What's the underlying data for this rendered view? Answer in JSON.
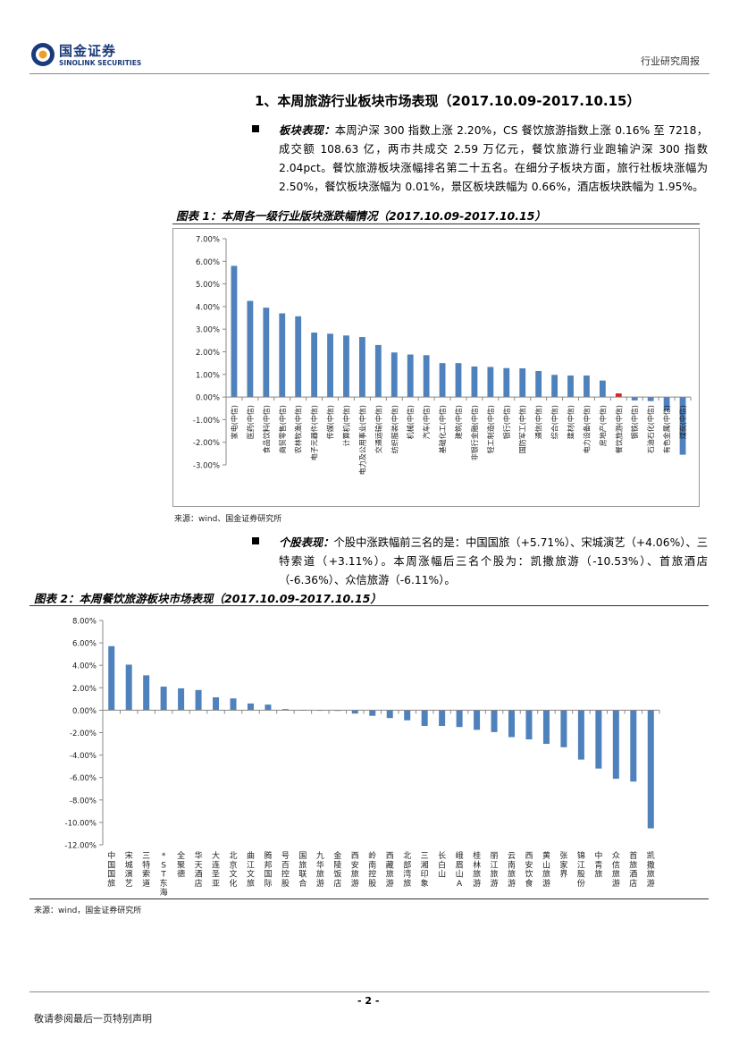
{
  "header": {
    "logo_cn": "国金证券",
    "logo_en": "SINOLINK SECURITIES",
    "report_type": "行业研究周报"
  },
  "section": {
    "title": "1、本周旅游行业板块市场表现（2017.10.09-2017.10.15）"
  },
  "para1": {
    "lead": "板块表现：",
    "text": "本周沪深 300 指数上涨 2.20%，CS 餐饮旅游指数上涨 0.16% 至 7218，成交额 108.63 亿，两市共成交 2.59 万亿元，餐饮旅游行业跑输沪深 300 指数 2.04pct。餐饮旅游板块涨幅排名第二十五名。在细分子板块方面，旅行社板块涨幅为 2.50%，餐饮板块涨幅为 0.01%，景区板块跌幅为 0.66%，酒店板块跌幅为 1.95%。"
  },
  "para2": {
    "lead": "个股表现：",
    "text": "个股中涨跌幅前三名的是：中国国旅（+5.71%）、宋城演艺（+4.06%）、三特索道（+3.11%）。本周涨幅后三名个股为：凯撒旅游（-10.53%）、首旅酒店（-6.36%）、众信旅游（-6.11%）。"
  },
  "fig1": {
    "title": "图表 1：本周各一级行业版块涨跌幅情况（2017.10.09-2017.10.15）",
    "source": "来源：wind、国金证券研究所"
  },
  "fig2": {
    "title": "图表 2：本周餐饮旅游板块市场表现（2017.10.09-2017.10.15）",
    "source": "来源：wind，国金证券研究所"
  },
  "footer": {
    "page": "- 2 -",
    "disclaimer": "敬请参阅最后一页特别声明"
  },
  "colors": {
    "bar": "#4f81bd",
    "highlight": "#e02020",
    "brand": "#1a3a7a"
  },
  "chart_data": [
    {
      "type": "bar",
      "title": "图表 1：本周各一级行业版块涨跌幅情况（2017.10.09-2017.10.15）",
      "ylim": [
        -3,
        7
      ],
      "y_ticks": [
        "7.00%",
        "6.00%",
        "5.00%",
        "4.00%",
        "3.00%",
        "2.00%",
        "1.00%",
        "0.00%",
        "-1.00%",
        "-2.00%",
        "-3.00%"
      ],
      "y_tick_values": [
        7,
        6,
        5,
        4,
        3,
        2,
        1,
        0,
        -1,
        -2,
        -3
      ],
      "highlight_category": "餐饮旅游(中信)",
      "categories": [
        "家电(中信)",
        "医药(中信)",
        "食品饮料(中信)",
        "商贸零售(中信)",
        "农林牧渔(中信)",
        "电子元器件(中信)",
        "传媒(中信)",
        "计算机(中信)",
        "电力及公用事业(中信)",
        "交通运输(中信)",
        "纺织服装(中信)",
        "机械(中信)",
        "汽车(中信)",
        "基础化工(中信)",
        "建筑(中信)",
        "非银行金融(中信)",
        "轻工制造(中信)",
        "银行(中信)",
        "国防军工(中信)",
        "通信(中信)",
        "综合(中信)",
        "建材(中信)",
        "电力设备(中信)",
        "房地产(中信)",
        "餐饮旅游(中信)",
        "钢铁(中信)",
        "石油石化(中信)",
        "有色金属(中信)",
        "煤炭(中信)"
      ],
      "values": [
        5.8,
        4.25,
        3.95,
        3.7,
        3.57,
        2.85,
        2.8,
        2.72,
        2.65,
        2.3,
        1.97,
        1.88,
        1.85,
        1.5,
        1.5,
        1.35,
        1.33,
        1.28,
        1.27,
        1.15,
        0.98,
        0.95,
        0.95,
        0.73,
        0.16,
        -0.15,
        -0.18,
        -0.6,
        -2.55
      ]
    },
    {
      "type": "bar",
      "title": "图表 2：本周餐饮旅游板块市场表现（2017.10.09-2017.10.15）",
      "ylim": [
        -12,
        8
      ],
      "y_ticks": [
        "8.00%",
        "6.00%",
        "4.00%",
        "2.00%",
        "0.00%",
        "-2.00%",
        "-4.00%",
        "-6.00%",
        "-8.00%",
        "-10.00%",
        "-12.00%"
      ],
      "y_tick_values": [
        8,
        6,
        4,
        2,
        0,
        -2,
        -4,
        -6,
        -8,
        -10,
        -12
      ],
      "highlight_category": "张家界",
      "categories": [
        "中国国旅",
        "宋城演艺",
        "三特索道",
        "*ST东海A",
        "全聚德",
        "华天酒店",
        "大连圣亚",
        "北京文化",
        "曲江文旅",
        "腾邦国际",
        "号百控股",
        "国旅联合",
        "九华旅游",
        "金陵饭店",
        "西安旅游",
        "岭南控股",
        "西藏旅游",
        "北部湾旅",
        "三湘印象",
        "长白山",
        "峨眉山A",
        "桂林旅游",
        "丽江旅游",
        "云南旅游",
        "西安饮食",
        "黄山旅游",
        "张家界",
        "锦江股份",
        "中青旅",
        "众信旅游",
        "首旅酒店",
        "凯撒旅游"
      ],
      "values": [
        5.71,
        4.06,
        3.11,
        2.1,
        1.95,
        1.8,
        1.15,
        1.05,
        0.6,
        0.5,
        0.1,
        0.02,
        0.01,
        0.0,
        -0.3,
        -0.5,
        -0.7,
        -0.9,
        -1.4,
        -1.4,
        -1.5,
        -1.75,
        -1.95,
        -2.4,
        -2.6,
        -3.0,
        -3.3,
        -4.4,
        -5.2,
        -6.11,
        -6.36,
        -10.53
      ]
    }
  ]
}
